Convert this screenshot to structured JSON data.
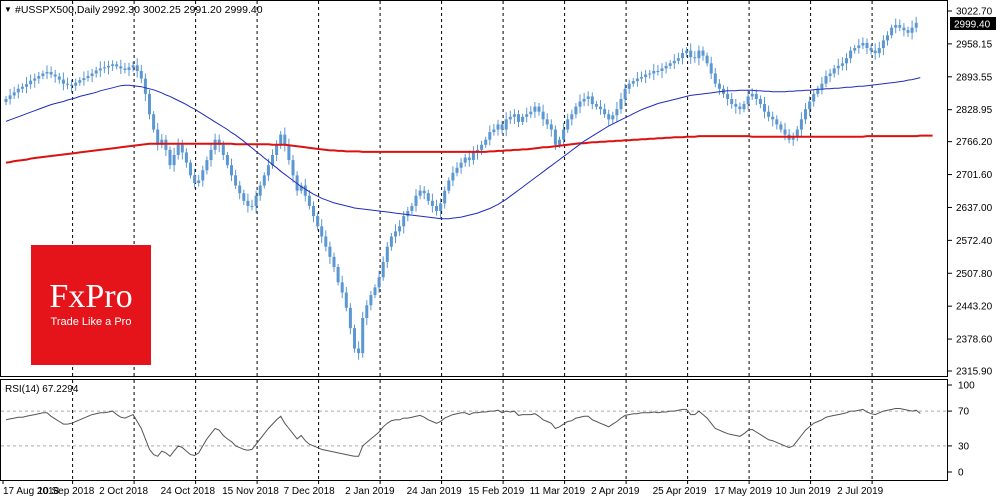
{
  "header": {
    "arrow": "▼",
    "symbol": "#USSPX500,Daily",
    "ohlc": "2992.30 3002.25 2991.20 2999.40"
  },
  "price_badge": "2999.40",
  "rsi_label": "RSI(14) 67.2294",
  "logo": {
    "brand": "FxPro",
    "tagline": "Trade Like a Pro",
    "color": "#e5141b"
  },
  "colors": {
    "candle": "#5b97d1",
    "ma_fast": "#1f2bbf",
    "ma_slow": "#dd1111",
    "rsi": "#555555",
    "grid": "#000000"
  },
  "chart_data": [
    {
      "type": "candlestick",
      "title": "",
      "xlabel": "",
      "ylabel": "",
      "ylim": [
        2315.9,
        3035
      ],
      "y_ticks": [
        "3022.70",
        "2958.15",
        "2893.55",
        "2828.95",
        "2766.20",
        "2701.60",
        "2637.00",
        "2572.40",
        "2507.80",
        "2443.20",
        "2378.60",
        "2315.90"
      ],
      "x_labels": [
        "17 Aug 2018",
        "10 Sep 2018",
        "2 Oct 2018",
        "24 Oct 2018",
        "15 Nov 2018",
        "7 Dec 2018",
        "2 Jan 2019",
        "24 Jan 2019",
        "15 Feb 2019",
        "11 Mar 2019",
        "2 Apr 2019",
        "25 Apr 2019",
        "17 May 2019",
        "10 Jun 2019",
        "2 Jul 2019"
      ],
      "x_label_bars": [
        0,
        16,
        31,
        46,
        61,
        76,
        91,
        106,
        121,
        136,
        151,
        166,
        181,
        196,
        211
      ],
      "grid": "dashed vertical",
      "close": [
        2850,
        2857,
        2863,
        2870,
        2874,
        2879,
        2886,
        2890,
        2895,
        2900,
        2903,
        2898,
        2894,
        2888,
        2880,
        2878,
        2876,
        2882,
        2887,
        2891,
        2895,
        2900,
        2906,
        2910,
        2912,
        2915,
        2918,
        2914,
        2910,
        2907,
        2912,
        2916,
        2905,
        2890,
        2860,
        2820,
        2790,
        2760,
        2770,
        2750,
        2720,
        2740,
        2760,
        2745,
        2725,
        2700,
        2685,
        2690,
        2710,
        2730,
        2750,
        2770,
        2760,
        2740,
        2720,
        2700,
        2680,
        2665,
        2650,
        2640,
        2640,
        2660,
        2680,
        2700,
        2720,
        2740,
        2760,
        2780,
        2760,
        2730,
        2700,
        2670,
        2680,
        2660,
        2640,
        2620,
        2600,
        2580,
        2560,
        2540,
        2520,
        2490,
        2470,
        2440,
        2400,
        2360,
        2351,
        2420,
        2445,
        2465,
        2480,
        2500,
        2530,
        2560,
        2580,
        2590,
        2600,
        2620,
        2630,
        2640,
        2660,
        2670,
        2665,
        2650,
        2640,
        2630,
        2645,
        2670,
        2690,
        2705,
        2715,
        2725,
        2735,
        2730,
        2745,
        2750,
        2760,
        2770,
        2785,
        2790,
        2800,
        2790,
        2810,
        2815,
        2820,
        2805,
        2815,
        2820,
        2825,
        2835,
        2825,
        2810,
        2800,
        2790,
        2760,
        2770,
        2790,
        2810,
        2820,
        2835,
        2845,
        2850,
        2855,
        2840,
        2835,
        2830,
        2820,
        2810,
        2818,
        2830,
        2850,
        2870,
        2880,
        2885,
        2890,
        2893,
        2898,
        2900,
        2905,
        2905,
        2910,
        2915,
        2920,
        2925,
        2930,
        2940,
        2945,
        2932,
        2930,
        2945,
        2935,
        2920,
        2900,
        2880,
        2870,
        2860,
        2850,
        2840,
        2835,
        2830,
        2840,
        2855,
        2860,
        2850,
        2840,
        2825,
        2815,
        2810,
        2800,
        2790,
        2780,
        2770,
        2775,
        2790,
        2810,
        2830,
        2845,
        2860,
        2870,
        2880,
        2895,
        2900,
        2910,
        2915,
        2920,
        2930,
        2945,
        2950,
        2955,
        2960,
        2950,
        2945,
        2940,
        2950,
        2965,
        2975,
        2990,
        2995,
        2990,
        2985,
        2980,
        2990,
        2999.4
      ],
      "ma_fast": [
        2806,
        2809,
        2812,
        2815,
        2818,
        2821,
        2824,
        2827,
        2830,
        2833,
        2836,
        2839,
        2841,
        2843,
        2845,
        2848,
        2850,
        2852,
        2855,
        2857,
        2859,
        2861,
        2863,
        2866,
        2868,
        2870,
        2872,
        2874,
        2876,
        2877,
        2877,
        2876,
        2875,
        2874,
        2872,
        2870,
        2868,
        2865,
        2862,
        2858,
        2855,
        2851,
        2847,
        2843,
        2839,
        2834,
        2830,
        2825,
        2820,
        2815,
        2810,
        2805,
        2800,
        2795,
        2790,
        2784,
        2779,
        2773,
        2767,
        2760,
        2754,
        2747,
        2741,
        2734,
        2728,
        2721,
        2715,
        2708,
        2702,
        2696,
        2690,
        2684,
        2678,
        2673,
        2668,
        2663,
        2659,
        2655,
        2652,
        2649,
        2646,
        2644,
        2642,
        2640,
        2638,
        2636,
        2635,
        2634,
        2633,
        2632,
        2631,
        2630,
        2629,
        2628,
        2627,
        2626,
        2625,
        2624,
        2623,
        2622,
        2621,
        2620,
        2619,
        2618,
        2617,
        2616,
        2615,
        2615,
        2615,
        2616,
        2617,
        2618,
        2620,
        2622,
        2624,
        2626,
        2629,
        2632,
        2635,
        2639,
        2643,
        2648,
        2653,
        2659,
        2665,
        2671,
        2677,
        2683,
        2689,
        2695,
        2701,
        2707,
        2713,
        2719,
        2725,
        2731,
        2737,
        2743,
        2749,
        2755,
        2761,
        2767,
        2772,
        2777,
        2782,
        2787,
        2792,
        2797,
        2801,
        2805,
        2809,
        2813,
        2817,
        2821,
        2825,
        2829,
        2832,
        2835,
        2838,
        2841,
        2843,
        2845,
        2847,
        2849,
        2851,
        2853,
        2855,
        2857,
        2858,
        2859,
        2860,
        2861,
        2862,
        2863,
        2864,
        2865,
        2866,
        2866,
        2866,
        2867,
        2867,
        2867,
        2867,
        2866,
        2866,
        2865,
        2865,
        2864,
        2864,
        2864,
        2864,
        2865,
        2865,
        2866,
        2866,
        2867,
        2867,
        2868,
        2869,
        2869,
        2870,
        2870,
        2871,
        2871,
        2872,
        2873,
        2873,
        2874,
        2875,
        2875,
        2876,
        2877,
        2878,
        2879,
        2880,
        2881,
        2882,
        2883,
        2884,
        2885,
        2887,
        2888,
        2890,
        2892
      ],
      "ma_slow": [
        2725,
        2726,
        2728,
        2729,
        2730,
        2731,
        2733,
        2734,
        2735,
        2736,
        2737,
        2738,
        2739,
        2740,
        2741,
        2742,
        2743,
        2744,
        2745,
        2746,
        2747,
        2748,
        2749,
        2750,
        2751,
        2752,
        2753,
        2754,
        2755,
        2756,
        2757,
        2758,
        2759,
        2760,
        2761,
        2762,
        2762,
        2762,
        2762,
        2762,
        2762,
        2762,
        2762,
        2762,
        2762,
        2762,
        2762,
        2762,
        2762,
        2762,
        2762,
        2762,
        2762,
        2762,
        2762,
        2762,
        2761,
        2761,
        2761,
        2761,
        2761,
        2761,
        2761,
        2761,
        2761,
        2760,
        2760,
        2760,
        2760,
        2759,
        2758,
        2757,
        2756,
        2755,
        2754,
        2753,
        2752,
        2751,
        2750,
        2749,
        2749,
        2748,
        2748,
        2747,
        2747,
        2747,
        2747,
        2746,
        2746,
        2746,
        2746,
        2746,
        2746,
        2746,
        2746,
        2746,
        2746,
        2746,
        2746,
        2746,
        2746,
        2746,
        2746,
        2746,
        2746,
        2746,
        2746,
        2746,
        2746,
        2746,
        2746,
        2746,
        2746,
        2746,
        2746,
        2746,
        2746,
        2746,
        2747,
        2747,
        2748,
        2748,
        2749,
        2749,
        2750,
        2750,
        2751,
        2751,
        2752,
        2753,
        2754,
        2755,
        2755,
        2756,
        2757,
        2758,
        2759,
        2760,
        2761,
        2762,
        2763,
        2763,
        2764,
        2765,
        2765,
        2766,
        2766,
        2767,
        2767,
        2768,
        2768,
        2769,
        2769,
        2770,
        2770,
        2771,
        2771,
        2772,
        2772,
        2773,
        2773,
        2774,
        2774,
        2775,
        2775,
        2775,
        2776,
        2776,
        2776,
        2777,
        2777,
        2777,
        2777,
        2777,
        2777,
        2777,
        2777,
        2777,
        2777,
        2777,
        2777,
        2777,
        2776,
        2776,
        2776,
        2776,
        2776,
        2776,
        2776,
        2776,
        2776,
        2776,
        2776,
        2776,
        2776,
        2776,
        2776,
        2776,
        2776,
        2776,
        2776,
        2776,
        2776,
        2776,
        2776,
        2776,
        2776,
        2776,
        2776,
        2776,
        2777,
        2777,
        2777,
        2777,
        2777,
        2777,
        2777,
        2777,
        2777,
        2777,
        2777,
        2777,
        2777,
        2778,
        2778,
        2778,
        2778
      ]
    },
    {
      "type": "line",
      "title": "RSI(14)",
      "ylim": [
        0,
        100
      ],
      "y_ticks": [
        "100",
        "70",
        "30",
        "0"
      ],
      "levels": [
        70,
        30
      ],
      "values": [
        60,
        61,
        62,
        63,
        63,
        64,
        65,
        66,
        67,
        68,
        68,
        64,
        61,
        58,
        55,
        55,
        56,
        58,
        60,
        62,
        64,
        66,
        67,
        68,
        68,
        69,
        70,
        66,
        63,
        62,
        64,
        66,
        58,
        50,
        38,
        26,
        20,
        18,
        24,
        22,
        18,
        24,
        30,
        28,
        24,
        20,
        19,
        22,
        30,
        38,
        44,
        50,
        48,
        42,
        38,
        35,
        30,
        28,
        26,
        25,
        26,
        32,
        38,
        44,
        50,
        55,
        60,
        64,
        56,
        50,
        44,
        38,
        42,
        36,
        32,
        30,
        28,
        26,
        25,
        24,
        23,
        22,
        21,
        20,
        19,
        18,
        18,
        30,
        34,
        38,
        42,
        46,
        52,
        56,
        59,
        60,
        60,
        62,
        62,
        63,
        64,
        65,
        63,
        60,
        58,
        56,
        58,
        62,
        64,
        66,
        67,
        68,
        68,
        66,
        68,
        68,
        69,
        69,
        70,
        70,
        71,
        68,
        70,
        69,
        70,
        65,
        66,
        66,
        66,
        67,
        64,
        60,
        58,
        56,
        50,
        52,
        55,
        58,
        59,
        62,
        63,
        64,
        64,
        60,
        58,
        56,
        54,
        52,
        55,
        58,
        62,
        65,
        66,
        67,
        67,
        68,
        68,
        68,
        69,
        68,
        69,
        69,
        70,
        70,
        71,
        72,
        72,
        66,
        66,
        70,
        66,
        62,
        56,
        50,
        48,
        46,
        44,
        43,
        42,
        41,
        44,
        48,
        49,
        46,
        43,
        40,
        37,
        36,
        34,
        32,
        30,
        28,
        30,
        36,
        42,
        48,
        52,
        56,
        58,
        60,
        63,
        64,
        65,
        66,
        67,
        68,
        70,
        70,
        71,
        72,
        69,
        67,
        66,
        68,
        70,
        71,
        72,
        73,
        73,
        72,
        71,
        70,
        71,
        67.2294
      ]
    }
  ]
}
